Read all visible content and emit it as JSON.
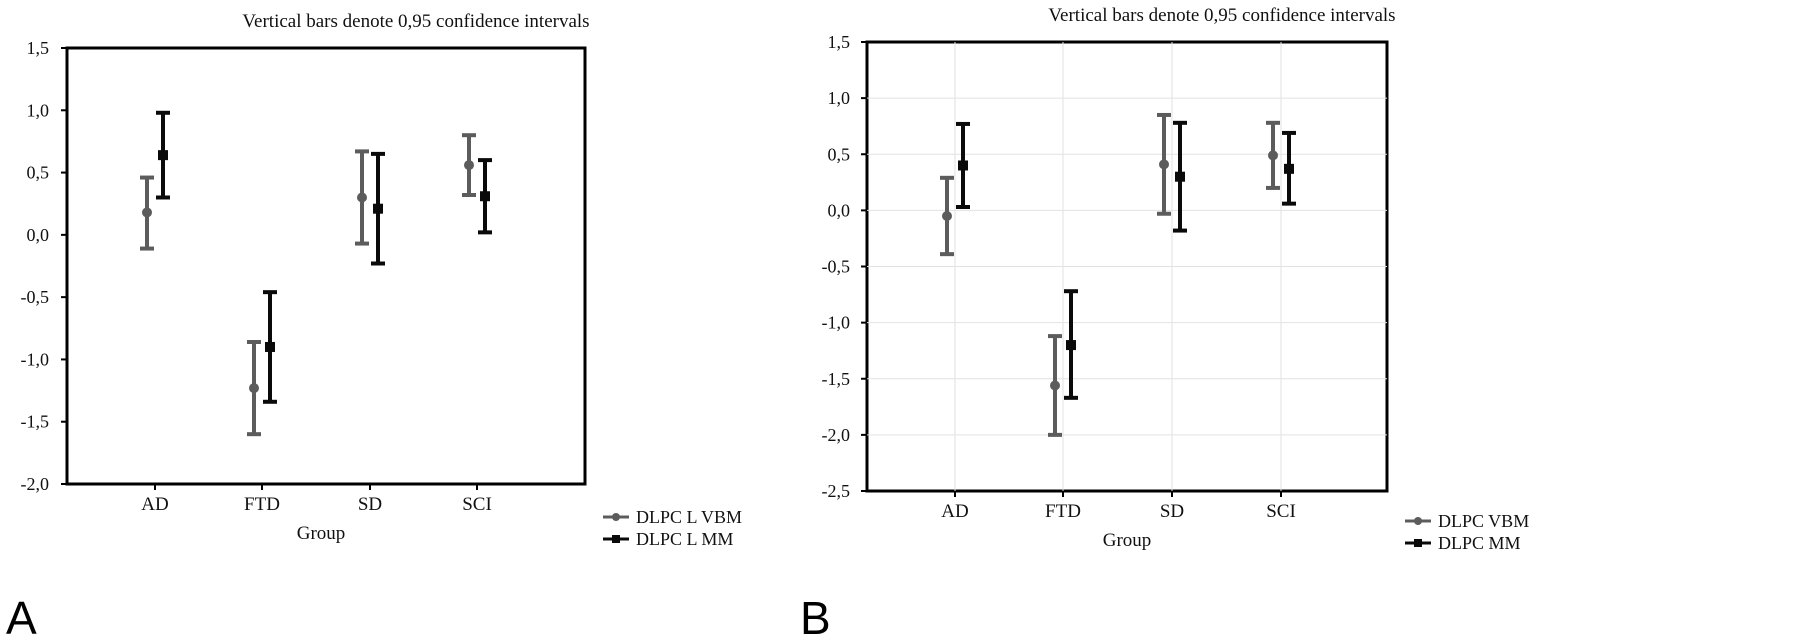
{
  "colors": {
    "vbm": "#5c5c5c",
    "mm": "#0a0a0a",
    "grid": "#e2e2e2"
  },
  "chart_data": [
    {
      "type": "scatter",
      "panel": "A",
      "title": "Vertical bars denote 0,95 confidence intervals",
      "xlabel": "Group",
      "ylabel": "",
      "categories": [
        "AD",
        "FTD",
        "SD",
        "SCI"
      ],
      "ylim": [
        -2.0,
        1.5
      ],
      "yticks": [
        "1,5",
        "1,0",
        "0,5",
        "0,0",
        "-0,5",
        "-1,0",
        "-1,5",
        "-2,0"
      ],
      "ytick_values": [
        1.5,
        1.0,
        0.5,
        0.0,
        -0.5,
        -1.0,
        -1.5,
        -2.0
      ],
      "grid": false,
      "legend_position": "bottom-right",
      "series": [
        {
          "name": "DLPC L VBM",
          "marker": "circle",
          "color_key": "vbm",
          "means": [
            0.18,
            -1.23,
            0.3,
            0.56
          ],
          "lower": [
            -0.11,
            -1.6,
            -0.07,
            0.32
          ],
          "upper": [
            0.46,
            -0.86,
            0.67,
            0.8
          ]
        },
        {
          "name": "DLPC L MM",
          "marker": "square",
          "color_key": "mm",
          "means": [
            0.64,
            -0.9,
            0.21,
            0.31
          ],
          "lower": [
            0.3,
            -1.34,
            -0.23,
            0.02
          ],
          "upper": [
            0.98,
            -0.46,
            0.65,
            0.6
          ]
        }
      ]
    },
    {
      "type": "scatter",
      "panel": "B",
      "title": "Vertical bars denote 0,95 confidence intervals",
      "xlabel": "Group",
      "ylabel": "",
      "categories": [
        "AD",
        "FTD",
        "SD",
        "SCI"
      ],
      "ylim": [
        -2.5,
        1.5
      ],
      "yticks": [
        "1,5",
        "1,0",
        "0,5",
        "0,0",
        "-0,5",
        "-1,0",
        "-1,5",
        "-2,0",
        "-2,5"
      ],
      "ytick_values": [
        1.5,
        1.0,
        0.5,
        0.0,
        -0.5,
        -1.0,
        -1.5,
        -2.0,
        -2.5
      ],
      "grid": true,
      "legend_position": "bottom-right",
      "series": [
        {
          "name": "DLPC  VBM",
          "marker": "circle",
          "color_key": "vbm",
          "means": [
            -0.05,
            -1.56,
            0.41,
            0.49
          ],
          "lower": [
            -0.39,
            -2.0,
            -0.03,
            0.2
          ],
          "upper": [
            0.29,
            -1.12,
            0.85,
            0.78
          ]
        },
        {
          "name": "DLPC  MM",
          "marker": "square",
          "color_key": "mm",
          "means": [
            0.4,
            -1.2,
            0.3,
            0.37
          ],
          "lower": [
            0.03,
            -1.67,
            -0.18,
            0.06
          ],
          "upper": [
            0.77,
            -0.72,
            0.78,
            0.69
          ]
        }
      ]
    }
  ]
}
